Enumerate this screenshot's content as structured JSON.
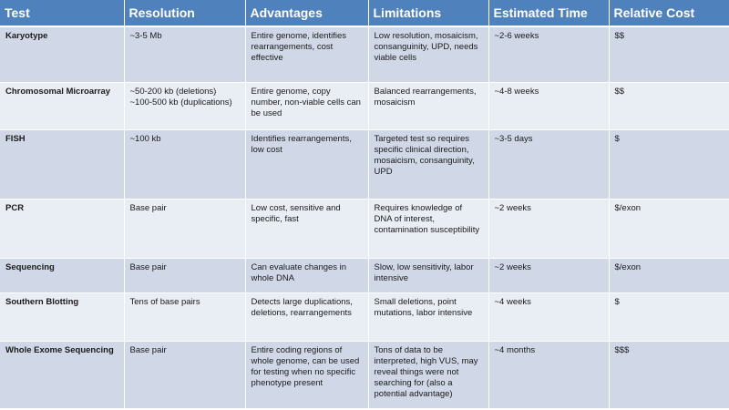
{
  "headers": [
    "Test",
    "Resolution",
    "Advantages",
    "Limitations",
    "Estimated Time",
    "Relative Cost"
  ],
  "rows": [
    {
      "test": "Karyotype",
      "resolution": "~3-5 Mb",
      "advantages": "Entire genome, identifies rearrangements, cost effective",
      "limitations": "Low resolution, mosaicism, consanguinity, UPD, needs viable cells",
      "time": "~2-6 weeks",
      "cost": "$$"
    },
    {
      "test": "Chromosomal Microarray",
      "resolution": "~50-200 kb (deletions)\n~100-500 kb (duplications)",
      "advantages": "Entire genome, copy number, non-viable cells can be used",
      "limitations": "Balanced rearrangements, mosaicism",
      "time": "~4-8 weeks",
      "cost": "$$"
    },
    {
      "test": "FISH",
      "resolution": "~100 kb",
      "advantages": "Identifies rearrangements, low cost",
      "limitations": "Targeted test so requires specific clinical direction, mosaicism, consanguinity, UPD",
      "time": "~3-5 days",
      "cost": "$"
    },
    {
      "test": "PCR",
      "resolution": "Base pair",
      "advantages": "Low cost, sensitive and specific, fast",
      "limitations": "Requires knowledge of DNA of interest, contamination susceptibility",
      "time": "~2 weeks",
      "cost": "$/exon"
    },
    {
      "test": "Sequencing",
      "resolution": "Base pair",
      "advantages": "Can evaluate changes in whole DNA",
      "limitations": "Slow, low sensitivity, labor intensive",
      "time": "~2 weeks",
      "cost": "$/exon"
    },
    {
      "test": "Southern Blotting",
      "resolution": "Tens of base pairs",
      "advantages": "Detects large duplications, deletions, rearrangements",
      "limitations": "Small deletions, point mutations, labor intensive",
      "time": "~4 weeks",
      "cost": "$"
    },
    {
      "test": "Whole Exome Sequencing",
      "resolution": "Base pair",
      "advantages": "Entire coding regions of whole genome, can be used for testing when no specific phenotype  present",
      "limitations": "Tons of data to be interpreted, high VUS, may reveal things were not searching for (also a potential advantage)",
      "time": "~4 months",
      "cost": "$$$"
    }
  ]
}
